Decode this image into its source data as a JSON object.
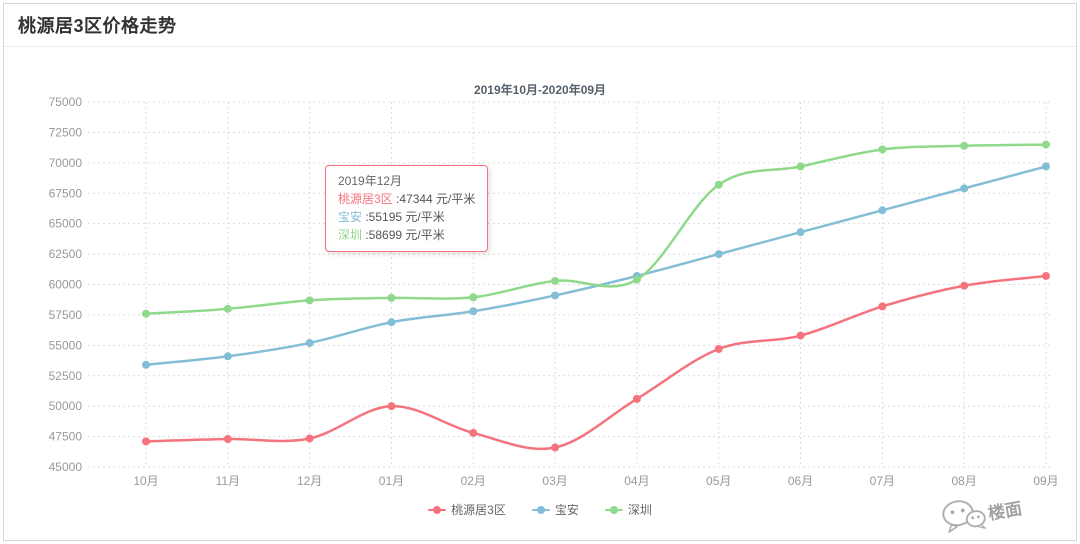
{
  "page": {
    "title": "桃源居3区价格走势"
  },
  "chart": {
    "subtitle": "2019年10月-2020年09月",
    "tooltip": {
      "title": "2019年12月",
      "separator": " :",
      "rows": [
        {
          "name": "桃源居3区",
          "value": "47344",
          "unit": "元/平米",
          "color": "#f4737d"
        },
        {
          "name": "宝安",
          "value": "55195",
          "unit": "元/平米",
          "color": "#84bed6"
        },
        {
          "name": "深圳",
          "value": "58699",
          "unit": "元/平米",
          "color": "#8fd98c"
        }
      ]
    },
    "legend": [
      "桃源居3区",
      "宝安",
      "深圳"
    ],
    "watermark": {
      "text": "楼面",
      "icon": "wechat-icon"
    },
    "colors": {
      "accent_red": "#f4737d",
      "accent_blue": "#84bed6",
      "accent_green": "#8fd98c",
      "axis_label": "#999999",
      "grid": "#dcdcdc"
    }
  },
  "chart_data": {
    "type": "line",
    "title": "桃源居3区价格走势",
    "subtitle": "2019年10月-2020年09月",
    "categories": [
      "10月",
      "11月",
      "12月",
      "01月",
      "02月",
      "03月",
      "04月",
      "05月",
      "06月",
      "07月",
      "08月",
      "09月"
    ],
    "series": [
      {
        "name": "桃源居3区",
        "color": "#f4737d",
        "values": [
          47100,
          47300,
          47344,
          50000,
          47800,
          46600,
          50600,
          54700,
          55800,
          58200,
          59900,
          60700
        ]
      },
      {
        "name": "宝安",
        "color": "#84bed6",
        "values": [
          53400,
          54100,
          55195,
          56900,
          57800,
          59100,
          60700,
          62500,
          64300,
          66100,
          67900,
          69700
        ]
      },
      {
        "name": "深圳",
        "color": "#8fd98c",
        "values": [
          57600,
          58000,
          58699,
          58900,
          58950,
          60300,
          60400,
          68200,
          69700,
          71100,
          71400,
          71500
        ]
      }
    ],
    "ylim": [
      45000,
      75000
    ],
    "ytick_step": 2500,
    "grid": true,
    "grid_style": "dotted",
    "smooth": true,
    "legend_position": "bottom",
    "xlabel": "",
    "ylabel": ""
  }
}
